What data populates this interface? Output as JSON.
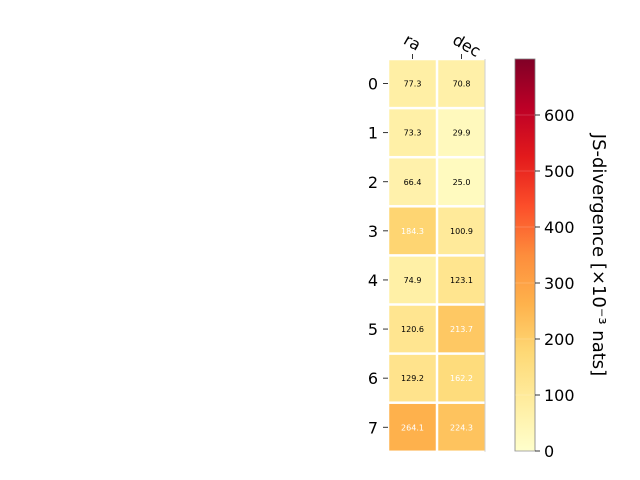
{
  "chart_data": {
    "type": "heatmap",
    "columns": [
      "ra",
      "dec"
    ],
    "rows": [
      "0",
      "1",
      "2",
      "3",
      "4",
      "5",
      "6",
      "7"
    ],
    "values": [
      [
        77.3,
        70.8
      ],
      [
        73.3,
        29.9
      ],
      [
        66.4,
        25.0
      ],
      [
        184.3,
        100.9
      ],
      [
        74.9,
        123.1
      ],
      [
        120.6,
        213.7
      ],
      [
        129.2,
        162.2
      ],
      [
        264.1,
        224.3
      ]
    ],
    "cell_labels": [
      [
        "77.3",
        "70.8"
      ],
      [
        "73.3",
        "29.9"
      ],
      [
        "66.4",
        "25.0"
      ],
      [
        "184.3",
        "100.9"
      ],
      [
        "74.9",
        "123.1"
      ],
      [
        "120.6",
        "213.7"
      ],
      [
        "129.2",
        "162.2"
      ],
      [
        "264.1",
        "224.3"
      ]
    ],
    "colormap": "YlOrRd",
    "color_range": [
      0,
      700
    ],
    "colorbar": {
      "label": "JS-divergence [×10⁻³ nats]",
      "ticks": [
        0,
        100,
        200,
        300,
        400,
        500,
        600
      ],
      "tick_labels": [
        "0",
        "100",
        "200",
        "300",
        "400",
        "500",
        "600"
      ]
    },
    "label_colors": {
      "dark": "#000000",
      "light": "#ffffff"
    },
    "light_label_threshold": 150
  }
}
